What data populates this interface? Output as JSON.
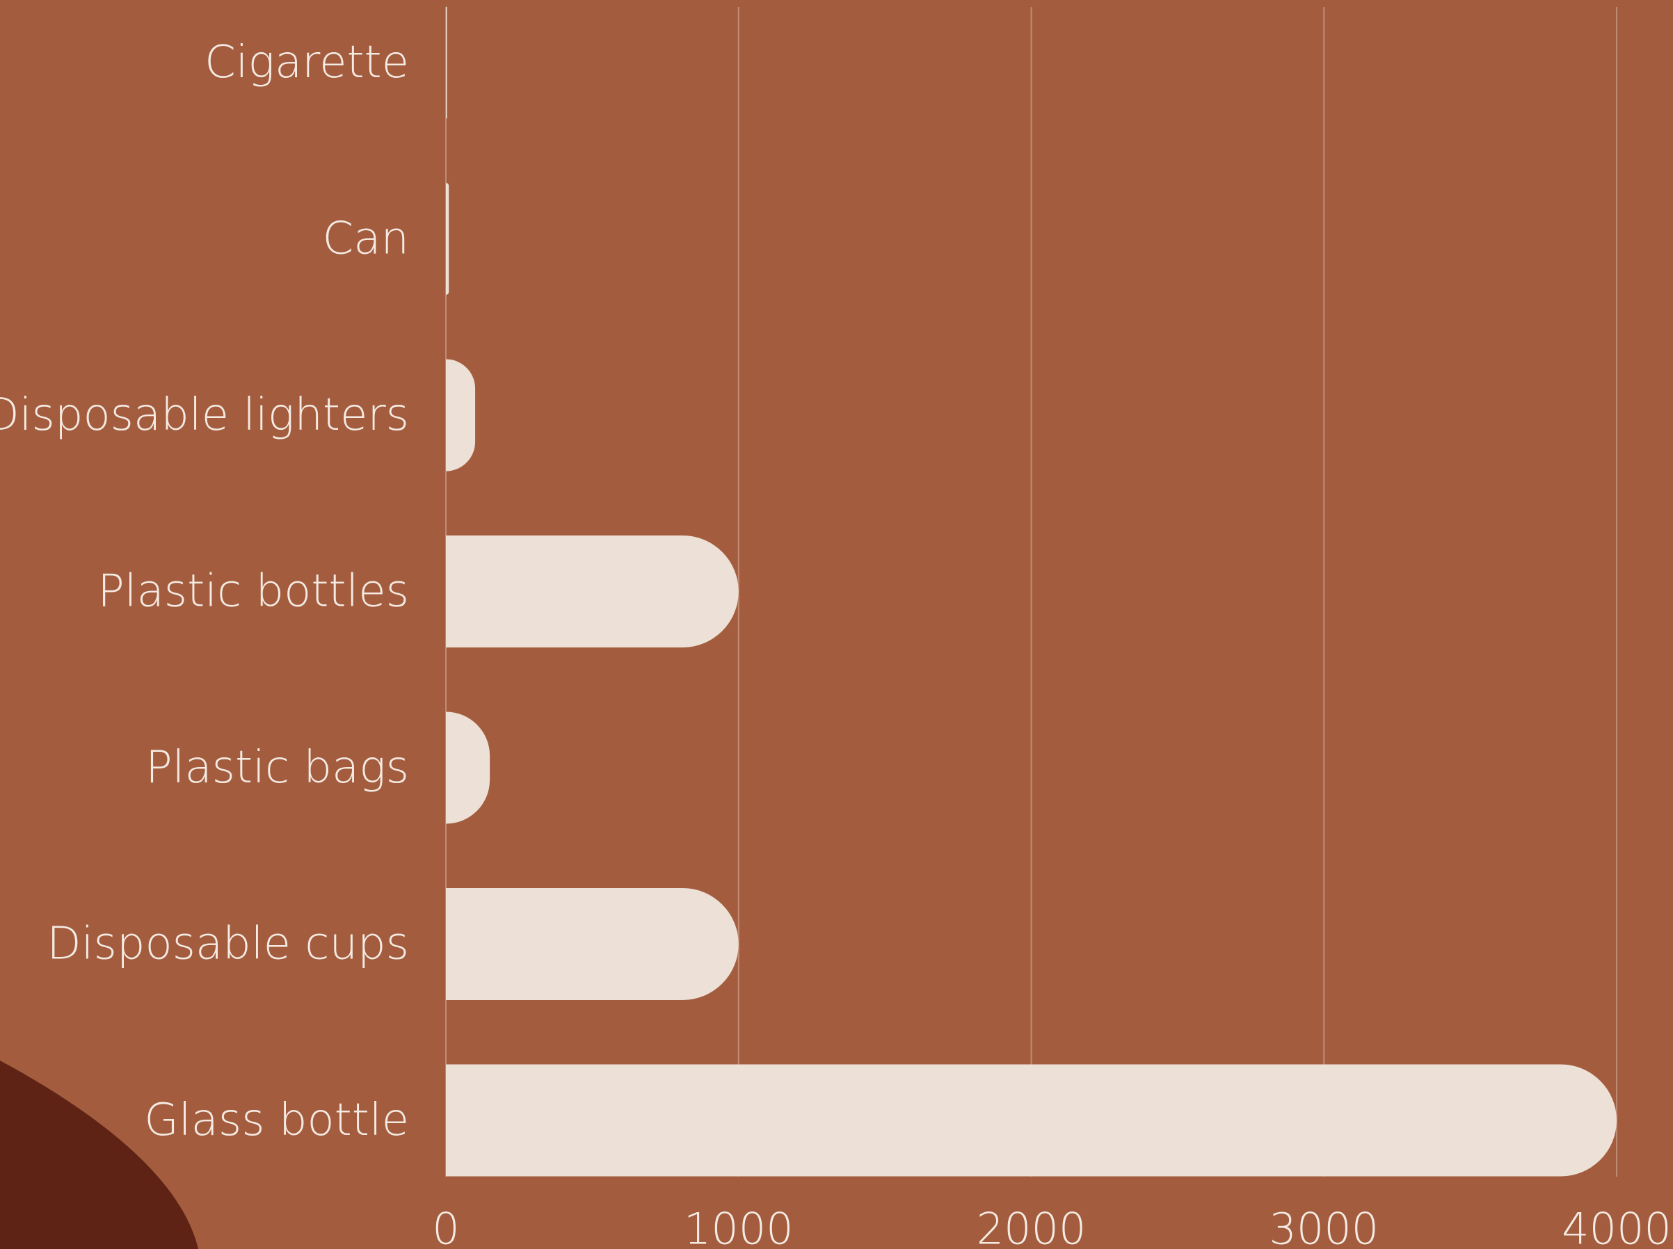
{
  "chart_data": {
    "type": "bar",
    "orientation": "horizontal",
    "categories": [
      "Cigarette",
      "Can",
      "Disposable lighters",
      "Plastic bottles",
      "Plastic bags",
      "Disposable cups",
      "Glass bottle"
    ],
    "values": [
      2,
      10,
      100,
      1000,
      150,
      1000,
      4000
    ],
    "title": "",
    "xlabel": "",
    "ylabel": "",
    "xlim": [
      0,
      4000
    ],
    "x_ticks": [
      0,
      1000,
      2000,
      3000,
      4000
    ],
    "x_tick_labels": [
      "0",
      "1000",
      "2000",
      "3000",
      "4000"
    ],
    "grid": true,
    "legend": "none",
    "colors": {
      "background": "#a35d3e",
      "bar": "#ede0d6",
      "text": "#f5ebe4",
      "grid": "#c18a72",
      "accent_shape": "#5e2314"
    }
  }
}
